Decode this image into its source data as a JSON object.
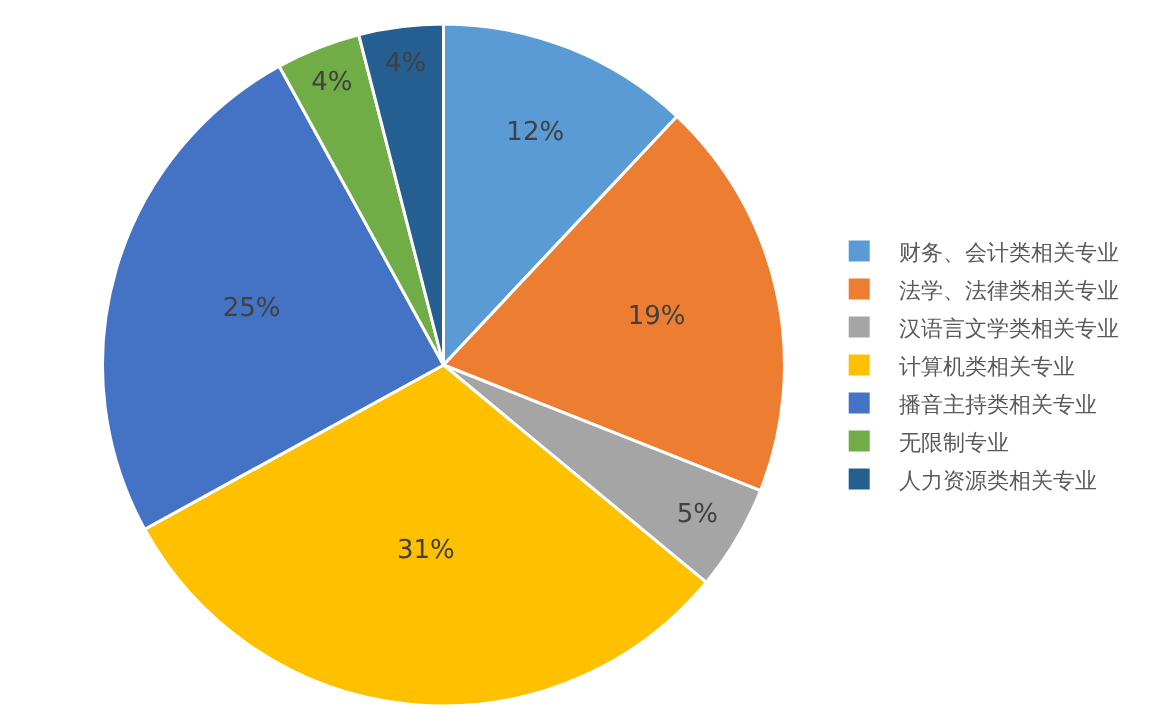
{
  "chart_data": {
    "type": "pie",
    "categories": [
      "财务、会计类相关专业",
      "法学、法律类相关专业",
      "汉语言文学类相关专业",
      "计算机类相关专业",
      "播音主持类相关专业",
      "无限制专业",
      "人力资源类相关专业"
    ],
    "values": [
      12,
      19,
      5,
      31,
      25,
      4,
      4
    ],
    "colors": [
      "#5b9bd5",
      "#ed7d31",
      "#a5a5a5",
      "#ffc000",
      "#4472c4",
      "#70ad47",
      "#255e91"
    ],
    "value_labels": [
      "12%",
      "19%",
      "5%",
      "31%",
      "25%",
      "4%",
      "4%"
    ],
    "legend": "right"
  }
}
